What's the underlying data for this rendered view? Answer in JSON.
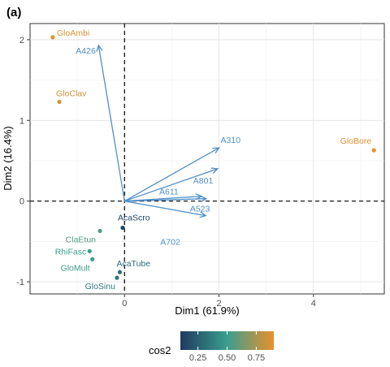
{
  "panel_label": "(a)",
  "chart_data": {
    "type": "scatter",
    "subtype": "PCA biplot",
    "xlabel": "Dim1 (61.9%)",
    "ylabel": "Dim2 (16.4%)",
    "xlim": [
      -2.0,
      5.5
    ],
    "ylim": [
      -1.15,
      2.2
    ],
    "x_ticks": [
      0,
      2,
      4
    ],
    "y_ticks": [
      -1,
      0,
      1,
      2
    ],
    "reference_lines": {
      "x": 0,
      "y": 0,
      "style": "dashed"
    },
    "grid": true,
    "colors": {
      "low": "#1f3a5f",
      "mid": "#3a9e8f",
      "high": "#e8912d",
      "arrow": "#4f8fc9"
    },
    "legend": {
      "title": "cos2",
      "position": "bottom",
      "range": [
        0.1,
        0.9
      ],
      "ticks": [
        0.25,
        0.5,
        0.75
      ],
      "tick_labels": [
        "0.25",
        "0.50",
        "0.75"
      ]
    },
    "points": [
      {
        "label": "GloAmbi",
        "x": -1.52,
        "y": 2.03,
        "cos2": 0.88
      },
      {
        "label": "GloClav",
        "x": -1.38,
        "y": 1.23,
        "cos2": 0.85
      },
      {
        "label": "GloBore",
        "x": 5.28,
        "y": 0.63,
        "cos2": 0.9
      },
      {
        "label": "AcaScro",
        "x": -0.04,
        "y": -0.33,
        "cos2": 0.15
      },
      {
        "label": "ClaEtun",
        "x": -0.52,
        "y": -0.37,
        "cos2": 0.55
      },
      {
        "label": "RhiFasc",
        "x": -0.74,
        "y": -0.62,
        "cos2": 0.5
      },
      {
        "label": "GloMult",
        "x": -0.68,
        "y": -0.72,
        "cos2": 0.52
      },
      {
        "label": "AcaTube",
        "x": -0.1,
        "y": -0.88,
        "cos2": 0.3
      },
      {
        "label": "GloSinu",
        "x": -0.16,
        "y": -0.95,
        "cos2": 0.35
      }
    ],
    "arrows": [
      {
        "label": "A426",
        "x": -0.55,
        "y": 1.93
      },
      {
        "label": "A310",
        "x": 2.0,
        "y": 0.66
      },
      {
        "label": "A801",
        "x": 1.97,
        "y": 0.4
      },
      {
        "label": "A611",
        "x": 1.63,
        "y": 0.06
      },
      {
        "label": "A523",
        "x": 1.73,
        "y": 0.03
      },
      {
        "label": "A702",
        "x": 1.72,
        "y": -0.18
      }
    ]
  }
}
